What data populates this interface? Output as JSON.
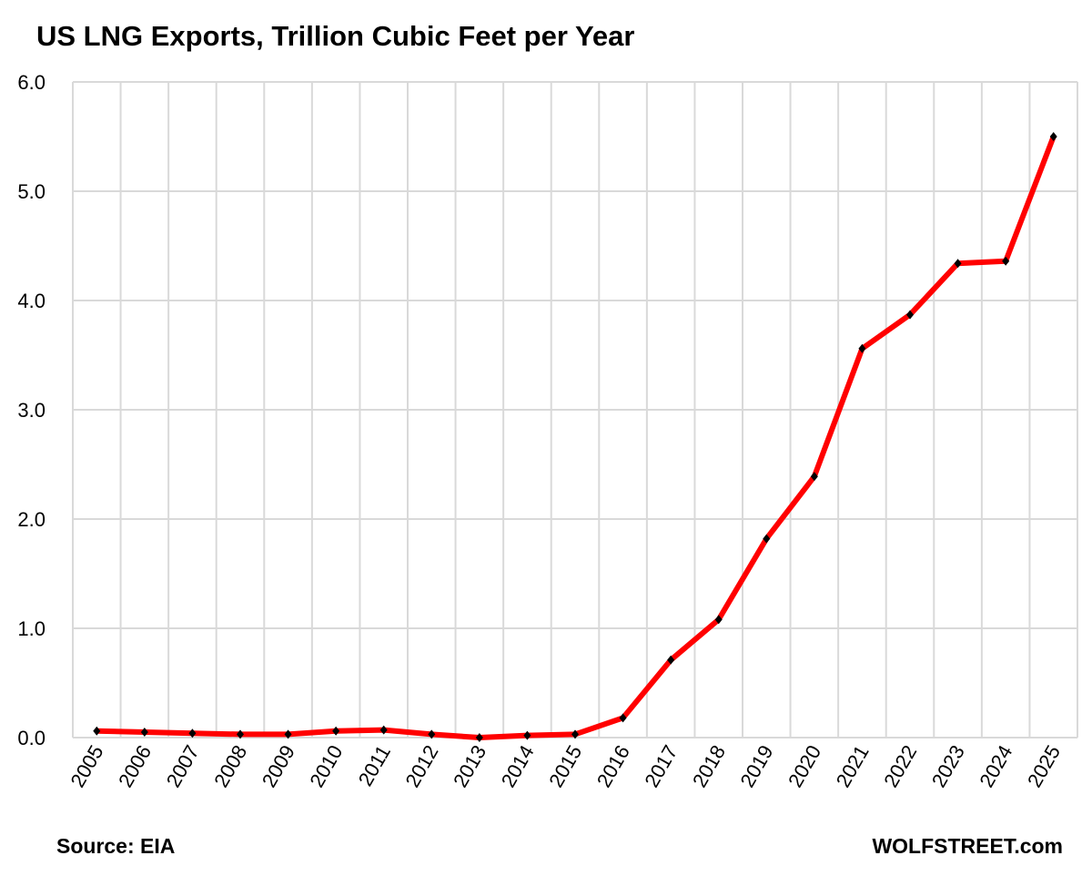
{
  "chart_data": {
    "type": "line",
    "title": "US LNG Exports, Trillion Cubic Feet per Year",
    "categories": [
      "2005",
      "2006",
      "2007",
      "2008",
      "2009",
      "2010",
      "2011",
      "2012",
      "2013",
      "2014",
      "2015",
      "2016",
      "2017",
      "2018",
      "2019",
      "2020",
      "2021",
      "2022",
      "2023",
      "2024",
      "2025"
    ],
    "values": [
      0.06,
      0.05,
      0.04,
      0.03,
      0.03,
      0.06,
      0.07,
      0.03,
      0.0,
      0.02,
      0.03,
      0.18,
      0.71,
      1.08,
      1.82,
      2.39,
      3.56,
      3.87,
      4.34,
      4.36,
      5.5
    ],
    "ylim": [
      0,
      6
    ],
    "yticks": [
      "0.0",
      "1.0",
      "2.0",
      "3.0",
      "4.0",
      "5.0",
      "6.0"
    ],
    "grid": true,
    "line_color": "#ff0000",
    "marker_color": "#000000",
    "source": "Source: EIA",
    "brand": "WOLFSTREET.com"
  }
}
